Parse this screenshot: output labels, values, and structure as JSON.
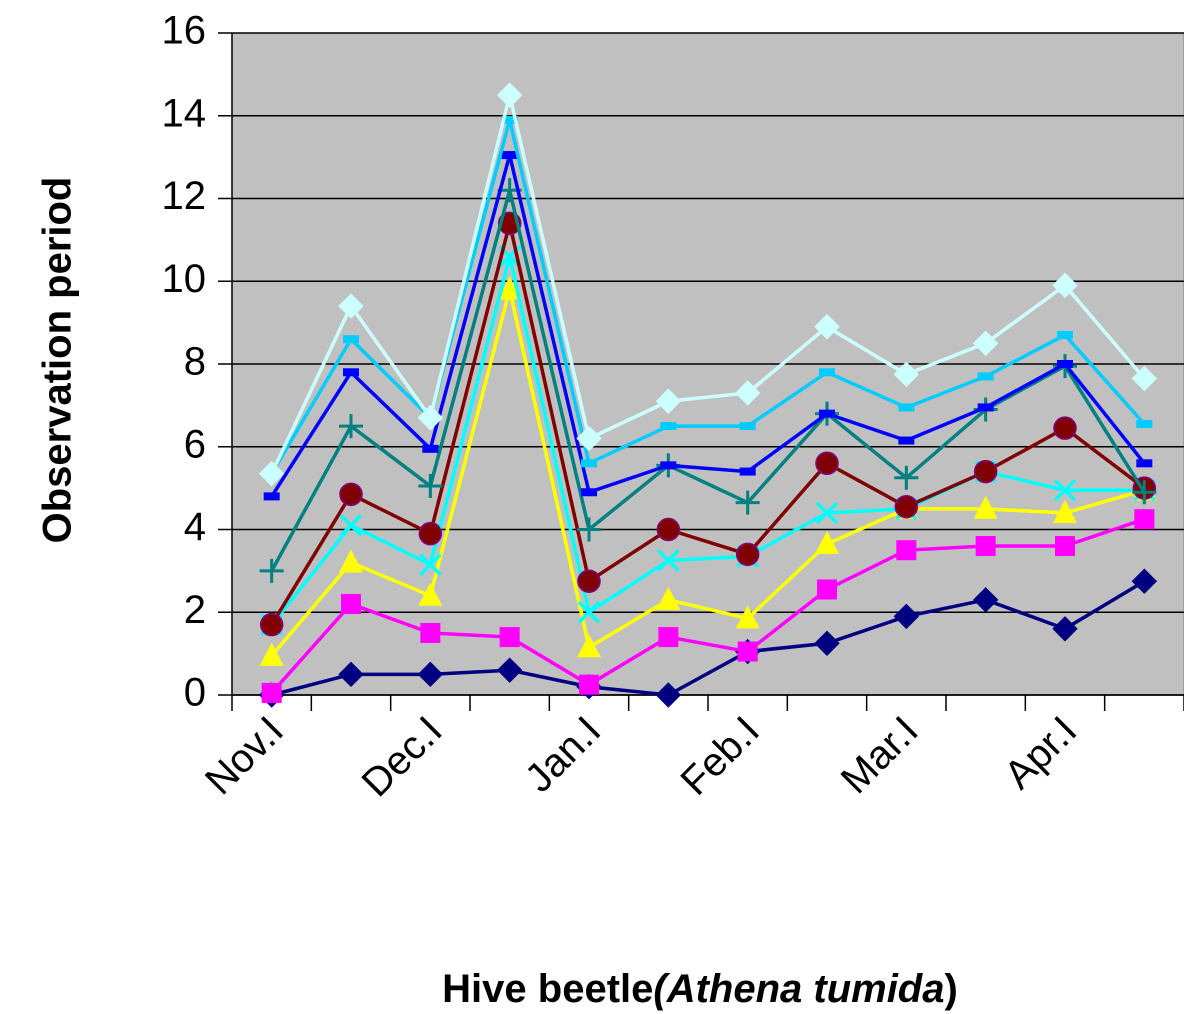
{
  "chart_data": {
    "type": "line",
    "ylabel": "Observation period",
    "xlabel": [
      "Hive beetle",
      "(Athena tumida",
      ")"
    ],
    "categories": [
      "Nov.I",
      null,
      "Dec.I",
      null,
      "Jan.I",
      null,
      "Feb.I",
      null,
      "Mar.I",
      null,
      "Apr.I",
      null
    ],
    "ylim": [
      0,
      16
    ],
    "yticks": [
      0,
      2,
      4,
      6,
      8,
      10,
      12,
      14,
      16
    ],
    "grid": true,
    "background": "#c0c0c0",
    "series": [
      {
        "color": "#000080",
        "marker": "diamond",
        "values": [
          0,
          0.5,
          0.5,
          0.6,
          0.2,
          0,
          1.05,
          1.25,
          1.9,
          2.3,
          1.6,
          2.75
        ]
      },
      {
        "color": "#ff00ff",
        "marker": "square",
        "values": [
          0.05,
          2.2,
          1.5,
          1.4,
          0.25,
          1.4,
          1.05,
          2.55,
          3.5,
          3.6,
          3.6,
          4.25
        ]
      },
      {
        "color": "#ffff00",
        "marker": "triangle",
        "values": [
          0.95,
          3.2,
          2.4,
          9.8,
          1.15,
          2.3,
          1.85,
          3.65,
          4.5,
          4.5,
          4.4,
          4.95
        ]
      },
      {
        "color": "#00ffff",
        "marker": "x",
        "values": [
          1.7,
          4.1,
          3.15,
          10.6,
          2.0,
          3.25,
          3.35,
          4.4,
          4.5,
          5.4,
          4.95,
          4.95
        ]
      },
      {
        "color": "#800000",
        "marker": "circle",
        "values": [
          1.7,
          4.85,
          3.9,
          11.4,
          2.75,
          4.0,
          3.4,
          5.6,
          4.55,
          5.4,
          6.45,
          5.0
        ]
      },
      {
        "color": "#008080",
        "marker": "plus",
        "values": [
          3.0,
          6.5,
          5.05,
          12.2,
          4.0,
          5.55,
          4.65,
          6.8,
          5.25,
          6.9,
          7.95,
          4.9
        ]
      },
      {
        "color": "#0000ff",
        "marker": "dash",
        "values": [
          4.8,
          7.8,
          5.95,
          13.05,
          4.9,
          5.55,
          5.4,
          6.8,
          6.15,
          6.95,
          8.0,
          5.6
        ]
      },
      {
        "color": "#00ccff",
        "marker": "dash",
        "values": [
          5.35,
          8.6,
          6.7,
          13.9,
          5.6,
          6.5,
          6.5,
          7.8,
          6.95,
          7.7,
          8.7,
          6.55
        ]
      },
      {
        "color": "#ccffff",
        "marker": "diamond",
        "values": [
          5.35,
          9.4,
          6.7,
          14.5,
          6.2,
          7.1,
          7.3,
          8.9,
          7.75,
          8.5,
          9.9,
          7.65
        ]
      }
    ]
  }
}
